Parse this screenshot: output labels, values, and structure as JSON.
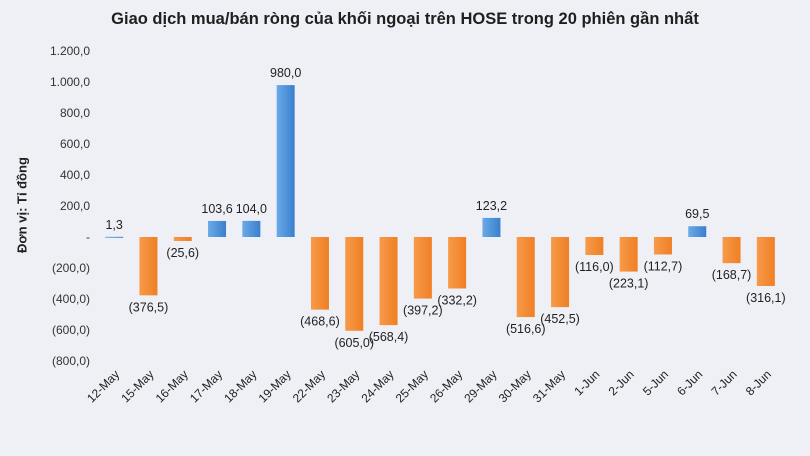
{
  "chart_data": {
    "type": "bar",
    "title": "Giao dịch mua/bán ròng của khối ngoại trên HOSE trong 20 phiên gần nhất",
    "ylabel": "Đơn vị: Tỉ đồng",
    "xlabel": "",
    "ylim": [
      -800,
      1200
    ],
    "yticks": [
      1200,
      1000,
      800,
      600,
      400,
      200,
      0,
      -200,
      -400,
      -600,
      -800
    ],
    "ytick_labels": [
      "1.200,0",
      "1.000,0",
      "800,0",
      "600,0",
      "400,0",
      "200,0",
      "-",
      "(200,0)",
      "(400,0)",
      "(600,0)",
      "(800,0)"
    ],
    "categories": [
      "12-May",
      "15-May",
      "16-May",
      "17-May",
      "18-May",
      "19-May",
      "22-May",
      "23-May",
      "24-May",
      "25-May",
      "26-May",
      "29-May",
      "30-May",
      "31-May",
      "1-Jun",
      "2-Jun",
      "5-Jun",
      "6-Jun",
      "7-Jun",
      "8-Jun"
    ],
    "values": [
      1.3,
      -376.5,
      -25.6,
      103.6,
      104.0,
      980.0,
      -468.6,
      -605.0,
      -568.4,
      -397.2,
      -332.2,
      123.2,
      -516.6,
      -452.5,
      -116.0,
      -223.1,
      -112.7,
      69.5,
      -168.7,
      -316.1
    ],
    "data_labels": [
      "1,3",
      "(376,5)",
      "(25,6)",
      "103,6",
      "104,0",
      "980,0",
      "(468,6)",
      "(605,0)",
      "(568,4)",
      "(397,2)",
      "(332,2)",
      "123,2",
      "(516,6)",
      "(452,5)",
      "(116,0)",
      "(223,1)",
      "(112,7)",
      "69,5",
      "(168,7)",
      "(316,1)"
    ],
    "colors": {
      "positive": "#4a90d9",
      "negative": "#f58a34"
    },
    "grid": false,
    "legend": "none"
  }
}
